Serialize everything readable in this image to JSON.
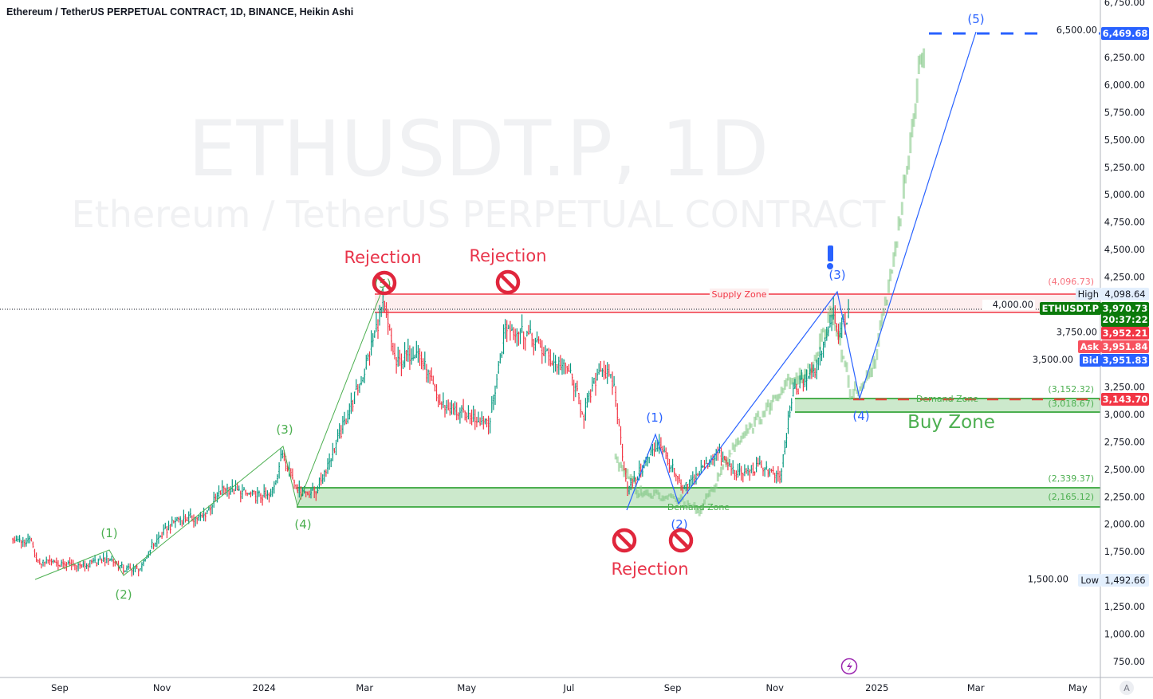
{
  "header": {
    "title": "Ethereum / TetherUS PERPETUAL CONTRACT, 1D, BINANCE, Heikin Ashi"
  },
  "watermark": {
    "symbol": "ETHUSDT.P, 1D",
    "description": "Ethereum / TetherUS PERPETUAL CONTRACT"
  },
  "colors": {
    "up": "#089981",
    "down": "#f23645",
    "projection": "#81c784",
    "wave_green": "#4caf50",
    "wave_blue": "#2962ff",
    "rejection": "#e0263c",
    "supply": "#f23645",
    "demand": "#4caf50"
  },
  "chart_data": {
    "type": "ohlc",
    "style": "Heikin Ashi bars",
    "ylim": [
      750,
      6750
    ],
    "y_ticks": [
      "6,750.00",
      "6,500.00",
      "6,250.00",
      "6,000.00",
      "5,750.00",
      "5,500.00",
      "5,250.00",
      "5,000.00",
      "4,750.00",
      "4,500.00",
      "4,250.00",
      "4,000.00",
      "3,750.00",
      "3,500.00",
      "3,250.00",
      "3,000.00",
      "2,750.00",
      "2,500.00",
      "2,250.00",
      "2,000.00",
      "1,750.00",
      "1,500.00",
      "1,250.00",
      "1,000.00",
      "750.00"
    ],
    "x_ticks": [
      {
        "label": "Sep",
        "date": "2023-09-01",
        "bold": false
      },
      {
        "label": "Nov",
        "date": "2023-11-01",
        "bold": false
      },
      {
        "label": "2024",
        "date": "2024-01-01",
        "bold": true
      },
      {
        "label": "Mar",
        "date": "2024-03-01",
        "bold": false
      },
      {
        "label": "May",
        "date": "2024-05-01",
        "bold": false
      },
      {
        "label": "Jul",
        "date": "2024-07-01",
        "bold": false
      },
      {
        "label": "Sep",
        "date": "2024-09-01",
        "bold": false
      },
      {
        "label": "Nov",
        "date": "2024-11-01",
        "bold": false
      },
      {
        "label": "2025",
        "date": "2025-01-01",
        "bold": true
      },
      {
        "label": "Mar",
        "date": "2025-03-01",
        "bold": false
      },
      {
        "label": "May",
        "date": "2025-05-01",
        "bold": false
      }
    ],
    "price_path": [
      [
        "2023-08-04",
        1870
      ],
      [
        "2023-08-15",
        1840
      ],
      [
        "2023-08-18",
        1660
      ],
      [
        "2023-09-01",
        1640
      ],
      [
        "2023-09-15",
        1620
      ],
      [
        "2023-10-01",
        1690
      ],
      [
        "2023-10-09",
        1590
      ],
      [
        "2023-10-20",
        1600
      ],
      [
        "2023-10-25",
        1790
      ],
      [
        "2023-11-10",
        2050
      ],
      [
        "2023-11-25",
        2060
      ],
      [
        "2023-12-08",
        2330
      ],
      [
        "2023-12-25",
        2260
      ],
      [
        "2024-01-05",
        2250
      ],
      [
        "2024-01-12",
        2650
      ],
      [
        "2024-01-22",
        2290
      ],
      [
        "2024-02-01",
        2300
      ],
      [
        "2024-02-15",
        2800
      ],
      [
        "2024-03-01",
        3400
      ],
      [
        "2024-03-12",
        4000
      ],
      [
        "2024-03-20",
        3450
      ],
      [
        "2024-04-01",
        3600
      ],
      [
        "2024-04-15",
        3100
      ],
      [
        "2024-05-01",
        2980
      ],
      [
        "2024-05-15",
        2950
      ],
      [
        "2024-05-24",
        3800
      ],
      [
        "2024-06-05",
        3750
      ],
      [
        "2024-06-20",
        3500
      ],
      [
        "2024-07-01",
        3400
      ],
      [
        "2024-07-10",
        3000
      ],
      [
        "2024-07-20",
        3450
      ],
      [
        "2024-07-28",
        3250
      ],
      [
        "2024-08-05",
        2300
      ],
      [
        "2024-08-24",
        2750
      ],
      [
        "2024-09-07",
        2300
      ],
      [
        "2024-09-27",
        2650
      ],
      [
        "2024-10-10",
        2450
      ],
      [
        "2024-10-25",
        2530
      ],
      [
        "2024-11-04",
        2400
      ],
      [
        "2024-11-12",
        3200
      ],
      [
        "2024-11-25",
        3400
      ],
      [
        "2024-12-06",
        3950
      ],
      [
        "2024-12-10",
        3700
      ],
      [
        "2024-12-15",
        3950
      ]
    ],
    "projection_path": [
      [
        "2024-07-29",
        2600
      ],
      [
        "2024-08-11",
        2300
      ],
      [
        "2024-08-25",
        2250
      ],
      [
        "2024-09-08",
        2200
      ],
      [
        "2024-09-17",
        2100
      ],
      [
        "2024-09-27",
        2400
      ],
      [
        "2024-10-11",
        2800
      ],
      [
        "2024-10-25",
        3000
      ],
      [
        "2024-11-08",
        3300
      ],
      [
        "2024-11-22",
        3400
      ],
      [
        "2024-12-04",
        3900
      ],
      [
        "2024-12-09",
        3700
      ],
      [
        "2024-12-16",
        3200
      ],
      [
        "2024-12-23",
        3200
      ],
      [
        "2024-12-31",
        3500
      ],
      [
        "2025-01-07",
        4100
      ],
      [
        "2025-01-14",
        4700
      ],
      [
        "2025-01-19",
        5300
      ],
      [
        "2025-01-24",
        5900
      ],
      [
        "2025-01-29",
        6400
      ]
    ]
  },
  "annotations": {
    "rejection": "Rejection",
    "supply_zone": "Supply Zone",
    "demand_zone": "Demand Zone",
    "buy_zone": "Buy Zone",
    "wave_labels": [
      "(1)",
      "(2)",
      "(3)",
      "(4)",
      "(5)"
    ],
    "zone_prices": {
      "supply_top": "(4,096.73)",
      "buy_top": "(3,152.32)",
      "buy_bottom": "(3,018.67)",
      "demand_top": "(2,339.37)",
      "demand_bottom": "(2,165.12)"
    }
  },
  "price_tags": {
    "target": "6,469.68",
    "high_label": "High",
    "high": "4,098.64",
    "symbol": "ETHUSDT.P",
    "last": "3,970.73",
    "countdown": "20:37:22",
    "prev": "3,952.21",
    "ask_label": "Ask",
    "ask": "3,951.84",
    "bid_label": "Bid",
    "bid": "3,951.83",
    "alert": "3,143.70",
    "low_label": "Low",
    "low": "1,492.66"
  },
  "axis_button": "A"
}
